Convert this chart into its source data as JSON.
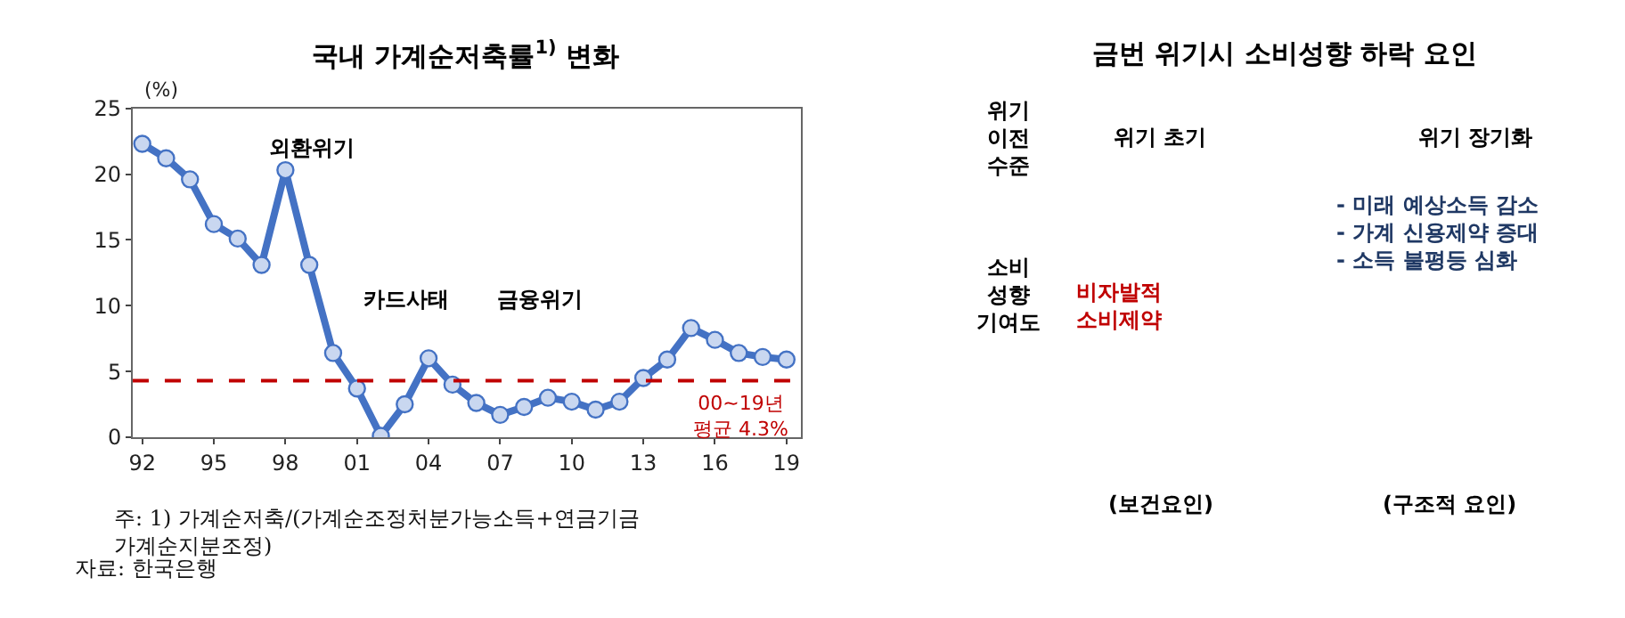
{
  "chart_data": [
    {
      "type": "line",
      "title": "국내 가계순저축률$^{1)}$ 변화",
      "ylabel": "(%)",
      "x": [
        1992,
        1993,
        1994,
        1995,
        1996,
        1997,
        1998,
        1999,
        2000,
        2001,
        2002,
        2003,
        2004,
        2005,
        2006,
        2007,
        2008,
        2009,
        2010,
        2011,
        2012,
        2013,
        2014,
        2015,
        2016,
        2017,
        2018,
        2019
      ],
      "series": [
        {
          "color": "#4472c4",
          "values": [
            22.3,
            21.2,
            19.6,
            16.2,
            15.1,
            13.1,
            20.3,
            13.1,
            6.4,
            3.7,
            0.1,
            2.5,
            6.0,
            4.0,
            2.6,
            1.7,
            2.3,
            3.0,
            2.7,
            2.1,
            2.7,
            4.5,
            5.9,
            8.3,
            7.4,
            6.4,
            6.1,
            5.9
          ]
        }
      ],
      "xlim": [
        1991.6,
        2019.6
      ],
      "xticks": [
        {
          "value": 1992,
          "label": "92"
        },
        {
          "value": 1995,
          "label": "95"
        },
        {
          "value": 1998,
          "label": "98"
        },
        {
          "value": 2001,
          "label": "01"
        },
        {
          "value": 2004,
          "label": "04"
        },
        {
          "value": 2007,
          "label": "07"
        },
        {
          "value": 2010,
          "label": "10"
        },
        {
          "value": 2013,
          "label": "13"
        },
        {
          "value": 2016,
          "label": "16"
        },
        {
          "value": 2019,
          "label": "19"
        }
      ],
      "ylim": [
        0,
        25
      ],
      "yticks": [
        0,
        5,
        10,
        15,
        20,
        25
      ],
      "ref_lines": [
        {
          "axis": "y",
          "value": 4.3,
          "label": "00~19년\n평균 4.3%",
          "color": "#c00000",
          "line_style": "dashed"
        }
      ],
      "annotations": [
        "외환위기",
        "카드사태",
        "금융위기",
        "주: 1) 가계순저축/(가계순조정처분가능소득+연금기금\n가계순지분조정)",
        "자료: 한국은행"
      ],
      "marker": "circle",
      "line_style": "solid"
    },
    {
      "type": "other",
      "title": "금번 위기시 소비성향 하락 요인",
      "annotations": [
        "위기\n이전\n수준",
        "소비\n성향\n기여도",
        "위기 초기",
        "위기 장기화",
        "비자발적\n소비제약",
        "- 미래 예상소득 감소\n- 가계 신용제약 증대\n- 소득 불평등 심화",
        "(보건요인)",
        "(구조적 요인)"
      ]
    }
  ]
}
